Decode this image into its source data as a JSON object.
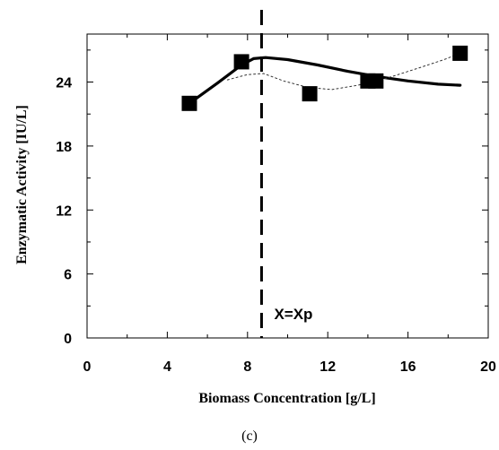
{
  "chart_data": {
    "type": "scatter",
    "xlabel": "Biomass Concentration [g/L]",
    "ylabel": "Enzymatic Activity [IU/L]",
    "xlim": [
      0,
      20
    ],
    "ylim": [
      0,
      28.5
    ],
    "x_ticks": [
      "0",
      "4",
      "8",
      "12",
      "16",
      "20"
    ],
    "y_ticks": [
      "0",
      "6",
      "12",
      "18",
      "24"
    ],
    "grid": false,
    "caption": "(c)",
    "vertical_line": {
      "x": 8.7,
      "style": "dashed",
      "label": "X=Xp"
    },
    "series": [
      {
        "kind": "markers",
        "marker": "square",
        "points": [
          {
            "x": 5.1,
            "y": 22.0
          },
          {
            "x": 7.7,
            "y": 25.9
          },
          {
            "x": 11.1,
            "y": 22.9
          },
          {
            "x": 14.0,
            "y": 24.1
          },
          {
            "x": 14.4,
            "y": 24.1
          },
          {
            "x": 18.6,
            "y": 26.7
          }
        ]
      },
      {
        "kind": "line",
        "style": "solid",
        "points": [
          {
            "x": 5.1,
            "y": 22.0
          },
          {
            "x": 6.5,
            "y": 23.9
          },
          {
            "x": 7.7,
            "y": 25.6
          },
          {
            "x": 8.3,
            "y": 26.2
          },
          {
            "x": 8.9,
            "y": 26.3
          },
          {
            "x": 10.0,
            "y": 26.1
          },
          {
            "x": 11.5,
            "y": 25.6
          },
          {
            "x": 13.0,
            "y": 25.0
          },
          {
            "x": 14.5,
            "y": 24.5
          },
          {
            "x": 16.0,
            "y": 24.1
          },
          {
            "x": 17.5,
            "y": 23.8
          },
          {
            "x": 18.6,
            "y": 23.7
          }
        ]
      },
      {
        "kind": "line",
        "style": "dotted",
        "points": [
          {
            "x": 7.0,
            "y": 24.2
          },
          {
            "x": 8.0,
            "y": 24.7
          },
          {
            "x": 8.8,
            "y": 24.8
          },
          {
            "x": 9.8,
            "y": 24.1
          },
          {
            "x": 11.0,
            "y": 23.5
          },
          {
            "x": 12.2,
            "y": 23.3
          },
          {
            "x": 13.5,
            "y": 23.7
          },
          {
            "x": 15.0,
            "y": 24.4
          },
          {
            "x": 16.5,
            "y": 25.3
          },
          {
            "x": 17.8,
            "y": 26.1
          },
          {
            "x": 18.6,
            "y": 26.7
          }
        ]
      }
    ]
  }
}
